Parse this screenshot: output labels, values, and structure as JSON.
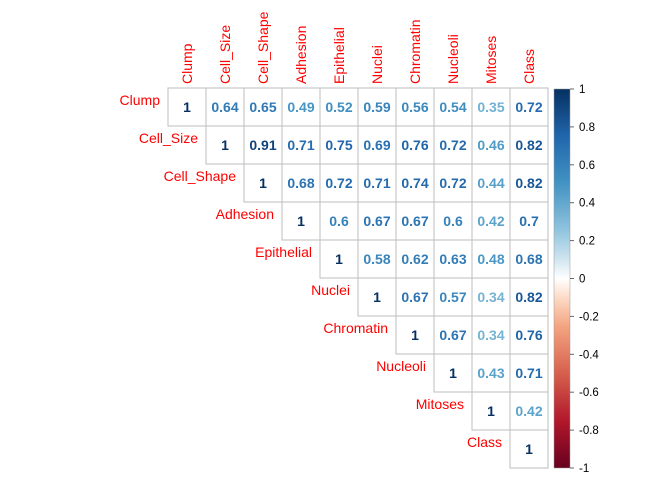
{
  "chart_data": {
    "type": "heatmap",
    "layout": "upper-triangle",
    "variables": [
      "Clump",
      "Cell_Size",
      "Cell_Shape",
      "Adhesion",
      "Epithelial",
      "Nuclei",
      "Chromatin",
      "Nucleoli",
      "Mitoses",
      "Class"
    ],
    "matrix": [
      [
        "1",
        "0.64",
        "0.65",
        "0.49",
        "0.52",
        "0.59",
        "0.56",
        "0.54",
        "0.35",
        "0.72"
      ],
      [
        null,
        "1",
        "0.91",
        "0.71",
        "0.75",
        "0.69",
        "0.76",
        "0.72",
        "0.46",
        "0.82"
      ],
      [
        null,
        null,
        "1",
        "0.68",
        "0.72",
        "0.71",
        "0.74",
        "0.72",
        "0.44",
        "0.82"
      ],
      [
        null,
        null,
        null,
        "1",
        "0.6",
        "0.67",
        "0.67",
        "0.6",
        "0.42",
        "0.7"
      ],
      [
        null,
        null,
        null,
        null,
        "1",
        "0.58",
        "0.62",
        "0.63",
        "0.48",
        "0.68"
      ],
      [
        null,
        null,
        null,
        null,
        null,
        "1",
        "0.67",
        "0.57",
        "0.34",
        "0.82"
      ],
      [
        null,
        null,
        null,
        null,
        null,
        null,
        "1",
        "0.67",
        "0.34",
        "0.76"
      ],
      [
        null,
        null,
        null,
        null,
        null,
        null,
        null,
        "1",
        "0.43",
        "0.71"
      ],
      [
        null,
        null,
        null,
        null,
        null,
        null,
        null,
        null,
        "1",
        "0.42"
      ],
      [
        null,
        null,
        null,
        null,
        null,
        null,
        null,
        null,
        null,
        "1"
      ]
    ],
    "colorbar": {
      "ticks": [
        "1",
        "0.8",
        "0.6",
        "0.4",
        "0.2",
        "0",
        "-0.2",
        "-0.4",
        "-0.6",
        "-0.8",
        "-1"
      ],
      "range": [
        -1,
        1
      ],
      "colors": {
        "negative": "#67001F",
        "neutral": "#FFFFFF",
        "positive": "#053061"
      }
    },
    "label_color": "#FF0000",
    "grid": true
  }
}
